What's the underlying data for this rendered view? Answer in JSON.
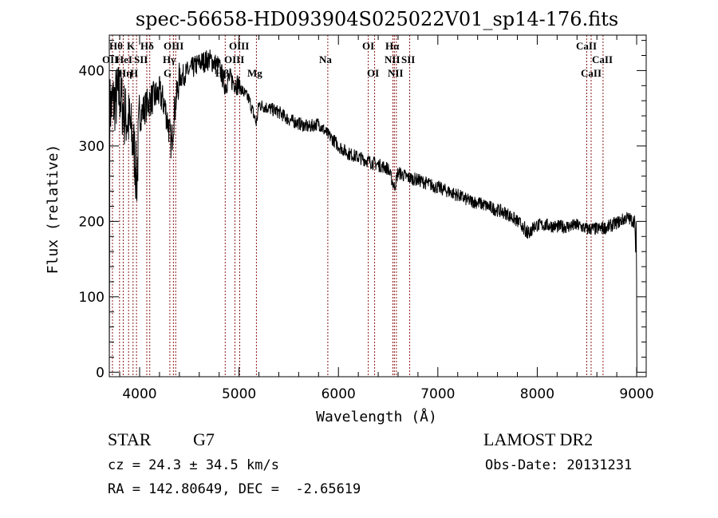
{
  "title": "spec-56658-HD093904S025022V01_sp14-176.fits",
  "info": {
    "class": "STAR",
    "subclass": "G7",
    "survey": "LAMOST DR2",
    "cz": "cz = 24.3 ± 34.5 km/s",
    "obs_date": "Obs-Date: 20131231",
    "coords": "RA = 142.80649, DEC =  -2.65619"
  },
  "chart_data": {
    "type": "line",
    "title": "spec-56658-HD093904S025022V01_sp14-176.fits",
    "xlabel": "Wavelength (Å)",
    "ylabel": "Flux (relative)",
    "xlim": [
      3695,
      9096
    ],
    "ylim": [
      -6,
      447
    ],
    "x_ticks": [
      "4000",
      "5000",
      "6000",
      "7000",
      "8000",
      "9000"
    ],
    "y_ticks": [
      "0",
      "100",
      "200",
      "300",
      "400"
    ],
    "grid": false,
    "series": [
      {
        "name": "flux",
        "x": [
          3700,
          3750,
          3800,
          3850,
          3900,
          3950,
          3970,
          4000,
          4050,
          4100,
          4150,
          4200,
          4250,
          4300,
          4320,
          4350,
          4400,
          4450,
          4500,
          4550,
          4600,
          4650,
          4700,
          4750,
          4800,
          4861,
          4900,
          4950,
          5000,
          5050,
          5100,
          5175,
          5200,
          5300,
          5400,
          5500,
          5600,
          5700,
          5800,
          5893,
          5950,
          6000,
          6100,
          6200,
          6300,
          6400,
          6500,
          6563,
          6600,
          6700,
          6800,
          6900,
          7000,
          7100,
          7200,
          7300,
          7400,
          7500,
          7600,
          7700,
          7800,
          7900,
          8000,
          8100,
          8200,
          8300,
          8400,
          8500,
          8600,
          8700,
          8800,
          8900,
          8980,
          9000
        ],
        "y": [
          350,
          360,
          370,
          340,
          330,
          290,
          250,
          340,
          350,
          360,
          365,
          370,
          355,
          320,
          300,
          345,
          390,
          395,
          400,
          405,
          410,
          412,
          415,
          410,
          405,
          380,
          390,
          385,
          380,
          370,
          362,
          330,
          355,
          350,
          345,
          335,
          330,
          325,
          330,
          315,
          308,
          300,
          290,
          285,
          280,
          275,
          270,
          245,
          265,
          258,
          255,
          250,
          245,
          240,
          235,
          228,
          225,
          220,
          215,
          210,
          200,
          190,
          195,
          195,
          193,
          193,
          195,
          190,
          190,
          192,
          198,
          205,
          200,
          120
        ]
      }
    ],
    "lines": [
      {
        "label": "Hθ",
        "wavelength": 3798
      },
      {
        "label": "K",
        "wavelength": 3934
      },
      {
        "label": "Hδ",
        "wavelength": 4102
      },
      {
        "label": "OIII",
        "wavelength": 4363
      },
      {
        "label": "OIII",
        "wavelength": 5007
      },
      {
        "label": "OII",
        "wavelength": 3727
      },
      {
        "label": "HeI",
        "wavelength": 3889
      },
      {
        "label": "SII",
        "wavelength": 4072
      },
      {
        "label": "Hγ",
        "wavelength": 4340
      },
      {
        "label": "OIII",
        "wavelength": 4959
      },
      {
        "label": "Hη",
        "wavelength": 3835
      },
      {
        "label": "H",
        "wavelength": 3969
      },
      {
        "label": "G",
        "wavelength": 4304
      },
      {
        "label": "Hβ",
        "wavelength": 4861
      },
      {
        "label": "Mg",
        "wavelength": 5175
      },
      {
        "label": "Na",
        "wavelength": 5893
      },
      {
        "label": "OI",
        "wavelength": 6300
      },
      {
        "label": "OI",
        "wavelength": 6364
      },
      {
        "label": "Hα",
        "wavelength": 6563
      },
      {
        "label": "NII",
        "wavelength": 6548
      },
      {
        "label": "NII",
        "wavelength": 6583
      },
      {
        "label": "SII",
        "wavelength": 6717
      },
      {
        "label": "CaII",
        "wavelength": 8498
      },
      {
        "label": "CaII",
        "wavelength": 8662
      },
      {
        "label": "CaII",
        "wavelength": 8542
      }
    ],
    "line_color": "#8b1a1a"
  }
}
